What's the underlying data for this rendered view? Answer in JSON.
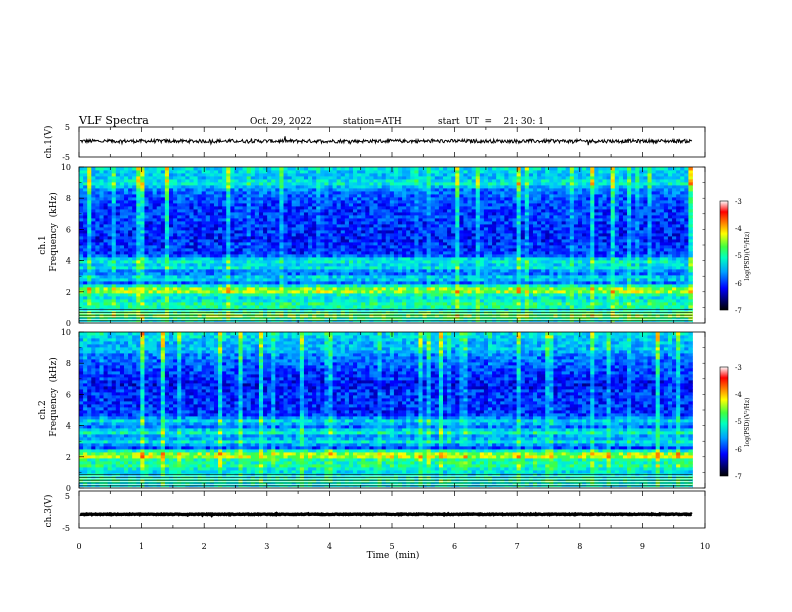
{
  "header": {
    "title": "VLF  Spectra",
    "date": "Oct. 29, 2022",
    "station": "station=ATH",
    "start": "start  UT  =    21: 30: 1"
  },
  "colors": {
    "background": "#ffffff",
    "trace": "#000000",
    "colormap": [
      "#000000",
      "#0000ff",
      "#00a0ff",
      "#00ffc0",
      "#40ff40",
      "#ffff00",
      "#ff8000",
      "#ff0000",
      "#ffffff"
    ]
  },
  "chart_data": [
    {
      "type": "line",
      "panel": "ch1-waveform",
      "ylabel": "ch.1(V)",
      "ylim": [
        -5,
        5
      ],
      "y_ticks": [
        "5",
        "-5"
      ],
      "xlim": [
        0,
        10
      ],
      "series": [
        {
          "values_description_level": 0.3,
          "noise": 0.6
        }
      ]
    },
    {
      "type": "heatmap",
      "panel": "ch1-spectrogram",
      "ylabel": "Frequency  (kHz)",
      "ylabel_top": "ch.1",
      "ylim": [
        0,
        10
      ],
      "y_ticks": [
        "0",
        "2",
        "4",
        "6",
        "8",
        "10"
      ],
      "xlim": [
        0,
        10
      ],
      "data_end_min": 9.8,
      "bands_khz": [
        {
          "f": 0.5,
          "level": 6.3
        },
        {
          "f": 1.2,
          "level": 5.4
        },
        {
          "f": 2.1,
          "level": 6.6
        },
        {
          "f": 2.9,
          "level": 4.4
        },
        {
          "f": 3.6,
          "level": 4.6
        },
        {
          "f": 4.0,
          "level": 4.9
        },
        {
          "f": 5.5,
          "level": 2.2
        },
        {
          "f": 6.8,
          "level": 2.6
        },
        {
          "f": 9.0,
          "level": 4.8
        }
      ],
      "colorbar": {
        "label": "log(PSD)(V²/Hz)",
        "ticks": [
          "-3",
          "-4",
          "-5",
          "-6",
          "-7"
        ],
        "range": [
          -7,
          -3
        ]
      }
    },
    {
      "type": "heatmap",
      "panel": "ch2-spectrogram",
      "ylabel": "Frequency  (kHz)",
      "ylabel_top": "ch.2",
      "ylim": [
        0,
        10
      ],
      "y_ticks": [
        "0",
        "2",
        "4",
        "6",
        "8",
        "10"
      ],
      "xlim": [
        0,
        10
      ],
      "data_end_min": 9.8,
      "bands_khz": [
        {
          "f": 0.5,
          "level": 5.2
        },
        {
          "f": 1.5,
          "level": 5.4
        },
        {
          "f": 2.1,
          "level": 6.8
        },
        {
          "f": 3.0,
          "level": 4.6
        },
        {
          "f": 3.6,
          "level": 5.0
        },
        {
          "f": 4.3,
          "level": 4.4
        },
        {
          "f": 6.6,
          "level": 2.0
        },
        {
          "f": 9.0,
          "level": 4.0
        }
      ],
      "colorbar": {
        "label": "log(PSD)(V²/Hz)",
        "ticks": [
          "-3",
          "-4",
          "-5",
          "-6",
          "-7"
        ],
        "range": [
          -7,
          -3
        ]
      }
    },
    {
      "type": "line",
      "panel": "ch3-waveform",
      "ylabel": "ch.3(V)",
      "ylim": [
        -5,
        5
      ],
      "y_ticks": [
        "5",
        "-5"
      ],
      "xlim": [
        0,
        10
      ],
      "series": [
        {
          "values_description_level": -1.3,
          "noise": 0.1
        }
      ]
    }
  ],
  "x_axis": {
    "label": "Time  (min)",
    "ticks": [
      "0",
      "1",
      "2",
      "3",
      "4",
      "5",
      "6",
      "7",
      "8",
      "9",
      "10"
    ]
  }
}
